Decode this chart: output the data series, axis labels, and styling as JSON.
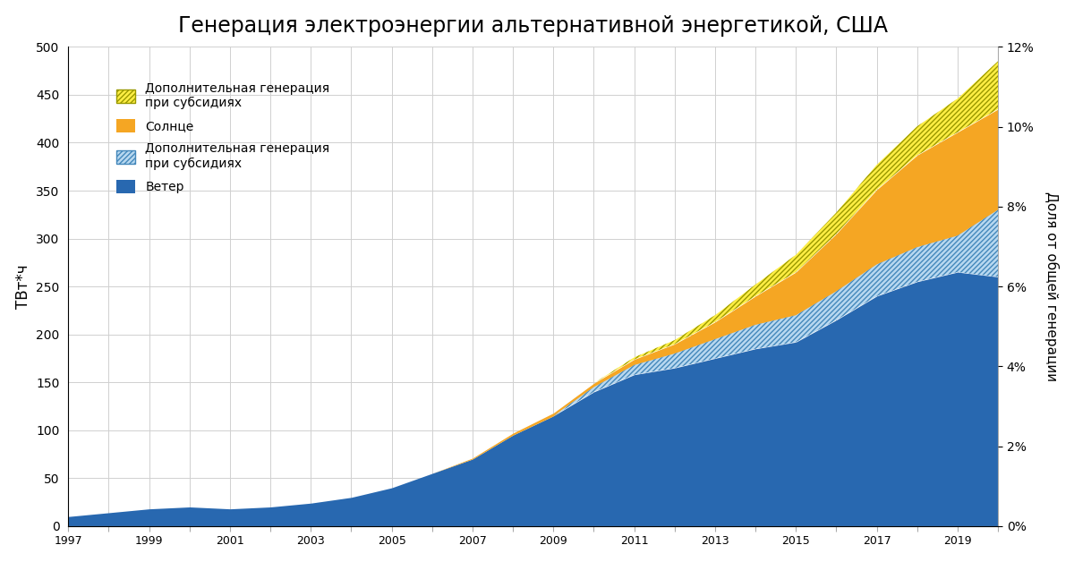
{
  "title": "Генерация электроэнергии альтернативной энергетикой, США",
  "ylabel_left": "ТВт*ч",
  "ylabel_right": "Доля от общей генерации",
  "ylim_left": [
    0,
    500
  ],
  "ylim_right": [
    0,
    0.12
  ],
  "years": [
    1997,
    1998,
    1999,
    2000,
    2001,
    2002,
    2003,
    2004,
    2005,
    2006,
    2007,
    2008,
    2009,
    2010,
    2011,
    2012,
    2013,
    2014,
    2015,
    2016,
    2017,
    2018,
    2019,
    2020
  ],
  "wind": [
    10,
    14,
    18,
    20,
    18,
    20,
    24,
    30,
    40,
    55,
    70,
    95,
    115,
    140,
    158,
    165,
    175,
    185,
    192,
    215,
    240,
    255,
    265,
    260
  ],
  "wind_subsidy": [
    0,
    0,
    0,
    0,
    0,
    0,
    0,
    0,
    0,
    0,
    0,
    0,
    0,
    5,
    10,
    15,
    20,
    25,
    28,
    30,
    33,
    36,
    38,
    70
  ],
  "solar": [
    0,
    0,
    0,
    0,
    0,
    0,
    0,
    0,
    0,
    0,
    1,
    2,
    3,
    4,
    6,
    10,
    18,
    30,
    45,
    60,
    78,
    96,
    108,
    105
  ],
  "solar_subsidy": [
    0,
    0,
    0,
    0,
    0,
    0,
    0,
    0,
    0,
    0,
    0,
    0,
    0,
    0,
    2,
    4,
    7,
    12,
    18,
    22,
    26,
    30,
    35,
    50
  ],
  "color_wind": "#2868B0",
  "color_solar": "#F5A623",
  "color_wind_hatch_face": "#B8D8F0",
  "color_wind_hatch_edge": "#4488BB",
  "color_solar_hatch_face": "#FFEE44",
  "color_solar_hatch_edge": "#999900",
  "background_color": "#FFFFFF",
  "grid_color": "#D0D0D0",
  "title_fontsize": 17,
  "xtick_labels": [
    "1997",
    "",
    "1999",
    "",
    "2001",
    "",
    "2003",
    "",
    "2005",
    "",
    "2007",
    "",
    "2009",
    "",
    "2011",
    "",
    "2013",
    "",
    "2015",
    "",
    "2017",
    "",
    "2019",
    ""
  ],
  "legend_labels": [
    "Дополнительная генерация\nпри субсидиях",
    "Солнце",
    "Дополнительная генерация\nпри субсидиях",
    "Ветер"
  ]
}
